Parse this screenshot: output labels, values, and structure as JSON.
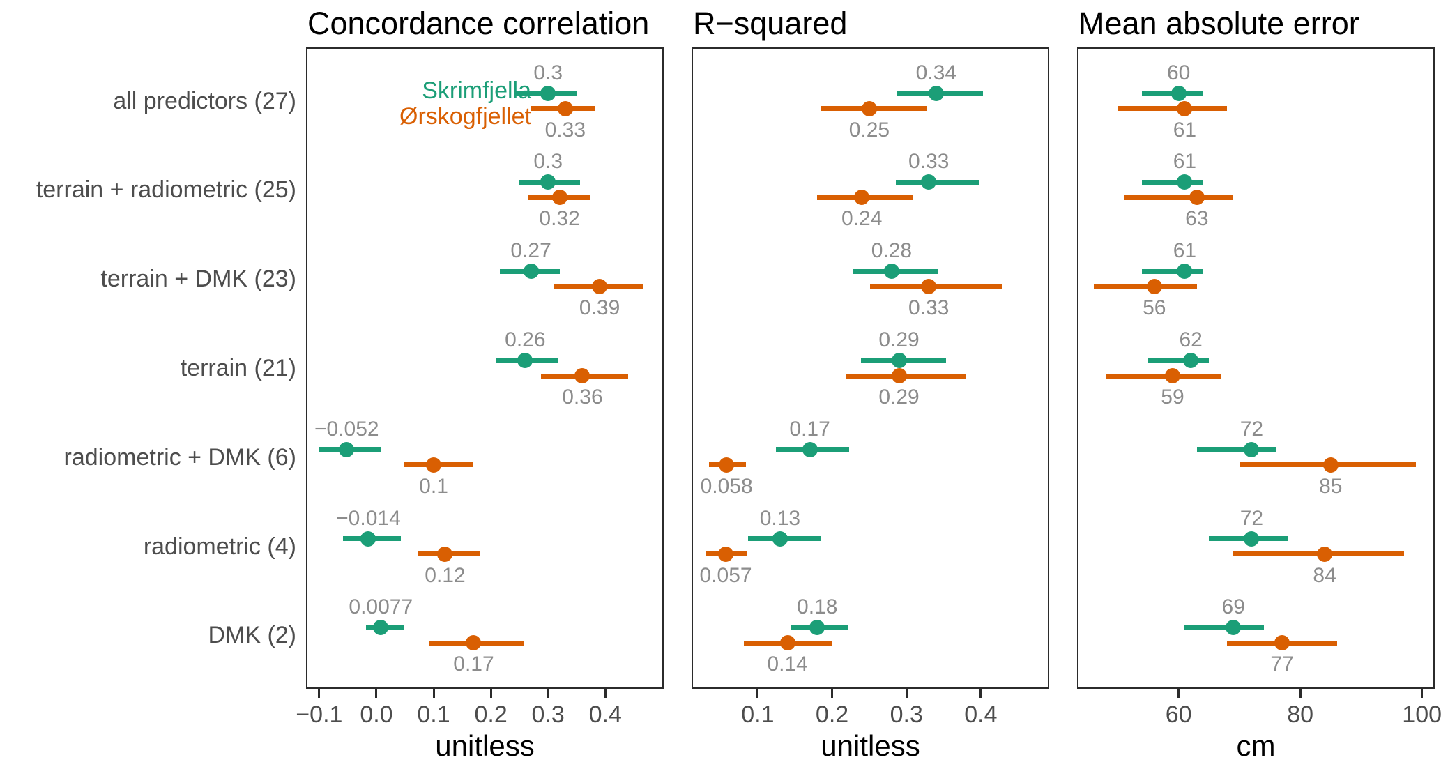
{
  "chart_data": {
    "type": "pointrange",
    "orientation": "horizontal",
    "grid": "off",
    "legend_position": "inside-top-left-of-first-panel",
    "categories": [
      "all predictors (27)",
      "terrain + radiometric (25)",
      "terrain + DMK (23)",
      "terrain (21)",
      "radiometric + DMK (6)",
      "radiometric (4)",
      "DMK (2)"
    ],
    "series_names": [
      "Skrimfjella",
      "Ørskogfjellet"
    ],
    "series_colors": [
      "#1b9e77",
      "#d95f02"
    ],
    "panels": [
      {
        "title": "Concordance correlation",
        "xlabel": "unitless",
        "xlim": [
          -0.123,
          0.502
        ],
        "xticks": [
          -0.1,
          0.0,
          0.1,
          0.2,
          0.3,
          0.4
        ],
        "xtick_labels": [
          "−0.1",
          "0.0",
          "0.1",
          "0.2",
          "0.3",
          "0.4"
        ],
        "series": [
          {
            "name": "Skrimfjella",
            "values": [
              0.3,
              0.3,
              0.27,
              0.26,
              -0.052,
              -0.014,
              0.0077
            ],
            "value_labels": [
              "0.3",
              "0.3",
              "0.27",
              "0.26",
              "−0.052",
              "−0.014",
              "0.0077"
            ],
            "ci_low": [
              0.24,
              0.25,
              0.216,
              0.21,
              -0.1,
              -0.058,
              -0.018
            ],
            "ci_high": [
              0.35,
              0.356,
              0.321,
              0.318,
              0.009,
              0.043,
              0.048
            ]
          },
          {
            "name": "Ørskogfjellet",
            "values": [
              0.33,
              0.32,
              0.39,
              0.36,
              0.1,
              0.12,
              0.17
            ],
            "value_labels": [
              "0.33",
              "0.32",
              "0.39",
              "0.36",
              "0.1",
              "0.12",
              "0.17"
            ],
            "ci_low": [
              0.27,
              0.264,
              0.311,
              0.287,
              0.048,
              0.072,
              0.092
            ],
            "ci_high": [
              0.381,
              0.374,
              0.466,
              0.44,
              0.169,
              0.181,
              0.257
            ]
          }
        ]
      },
      {
        "title": "R−squared",
        "xlabel": "unitless",
        "xlim": [
          0.011,
          0.492
        ],
        "xticks": [
          0.1,
          0.2,
          0.3,
          0.4
        ],
        "xtick_labels": [
          "0.1",
          "0.2",
          "0.3",
          "0.4"
        ],
        "series": [
          {
            "name": "Skrimfjella",
            "values": [
              0.34,
              0.33,
              0.28,
              0.29,
              0.17,
              0.13,
              0.18
            ],
            "value_labels": [
              "0.34",
              "0.33",
              "0.28",
              "0.29",
              "0.17",
              "0.13",
              "0.18"
            ],
            "ci_low": [
              0.288,
              0.286,
              0.228,
              0.239,
              0.124,
              0.087,
              0.145
            ],
            "ci_high": [
              0.403,
              0.398,
              0.342,
              0.353,
              0.223,
              0.185,
              0.222
            ]
          },
          {
            "name": "Ørskogfjellet",
            "values": [
              0.25,
              0.24,
              0.33,
              0.29,
              0.058,
              0.057,
              0.14
            ],
            "value_labels": [
              "0.25",
              "0.24",
              "0.33",
              "0.29",
              "0.058",
              "0.057",
              "0.14"
            ],
            "ci_low": [
              0.185,
              0.18,
              0.251,
              0.218,
              0.034,
              0.03,
              0.081
            ],
            "ci_high": [
              0.328,
              0.309,
              0.428,
              0.38,
              0.084,
              0.086,
              0.199
            ]
          }
        ]
      },
      {
        "title": "Mean absolute error",
        "xlabel": "cm",
        "xlim": [
          43.3,
          102.1
        ],
        "xticks": [
          60,
          80,
          100
        ],
        "xtick_labels": [
          "60",
          "80",
          "100"
        ],
        "series": [
          {
            "name": "Skrimfjella",
            "values": [
              60,
              61,
              61,
              62,
              72,
              72,
              69
            ],
            "value_labels": [
              "60",
              "61",
              "61",
              "62",
              "72",
              "72",
              "69"
            ],
            "ci_low": [
              54,
              54,
              54,
              55,
              63,
              65,
              61
            ],
            "ci_high": [
              64,
              64,
              64,
              65,
              76,
              78,
              74
            ]
          },
          {
            "name": "Ørskogfjellet",
            "values": [
              61,
              63,
              56,
              59,
              85,
              84,
              77
            ],
            "value_labels": [
              "61",
              "63",
              "56",
              "59",
              "85",
              "84",
              "77"
            ],
            "ci_low": [
              50,
              51,
              46,
              48,
              70,
              69,
              68
            ],
            "ci_high": [
              68,
              69,
              63,
              67,
              99,
              97,
              86
            ]
          }
        ]
      }
    ]
  },
  "legend": {
    "items": [
      {
        "label": "Skrimfjella",
        "color": "#1b9e77"
      },
      {
        "label": "Ørskogfjellet",
        "color": "#d95f02"
      }
    ]
  },
  "colors": {
    "green_series": "#1b9e77",
    "orange_series": "#d95f02",
    "value_label": "#8c8c8c",
    "axis_text": "#4d4d4d",
    "panel_border": "#2b2b2b",
    "title_text": "#000000",
    "background": "#ffffff"
  }
}
